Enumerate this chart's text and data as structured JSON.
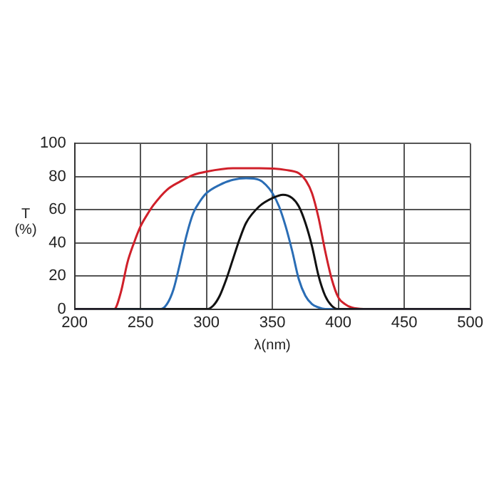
{
  "chart_data": {
    "type": "line",
    "xlabel": "λ(nm)",
    "ylabel": "T (%)",
    "xlim": [
      200,
      500
    ],
    "xticks": [
      200,
      250,
      300,
      350,
      400,
      450,
      500
    ],
    "ylim": [
      0,
      100
    ],
    "yticks": [
      0,
      20,
      40,
      60,
      80,
      100
    ],
    "grid": true,
    "marker": "none",
    "line_style": "solid",
    "series": [
      {
        "color": "#111111",
        "x": [
          200,
          300,
          305,
          310,
          315,
          320,
          325,
          330,
          340,
          350,
          358,
          365,
          370,
          375,
          380,
          385,
          390,
          395,
          400,
          500
        ],
        "values": [
          0,
          0,
          2,
          8,
          18,
          30,
          42,
          52,
          62,
          67,
          69,
          67,
          62,
          52,
          38,
          20,
          8,
          2,
          0,
          0
        ]
      },
      {
        "color": "#2a6db5",
        "x": [
          200,
          265,
          270,
          275,
          280,
          285,
          290,
          295,
          300,
          310,
          320,
          330,
          340,
          345,
          350,
          355,
          360,
          365,
          370,
          375,
          380,
          385,
          390,
          500
        ],
        "values": [
          0,
          0,
          3,
          12,
          28,
          45,
          58,
          65,
          70,
          75,
          78,
          79,
          78,
          75,
          70,
          62,
          50,
          35,
          18,
          8,
          3,
          1,
          0,
          0
        ]
      },
      {
        "color": "#d0202a",
        "x": [
          200,
          230,
          235,
          240,
          245,
          250,
          255,
          260,
          270,
          280,
          290,
          300,
          320,
          340,
          360,
          370,
          375,
          380,
          385,
          390,
          395,
          400,
          405,
          410,
          420,
          430,
          500
        ],
        "values": [
          0,
          0,
          10,
          28,
          40,
          50,
          57,
          63,
          72,
          77,
          81,
          83,
          85,
          85,
          84,
          82,
          78,
          70,
          55,
          35,
          18,
          7,
          3,
          1,
          0,
          0,
          0
        ]
      }
    ]
  }
}
